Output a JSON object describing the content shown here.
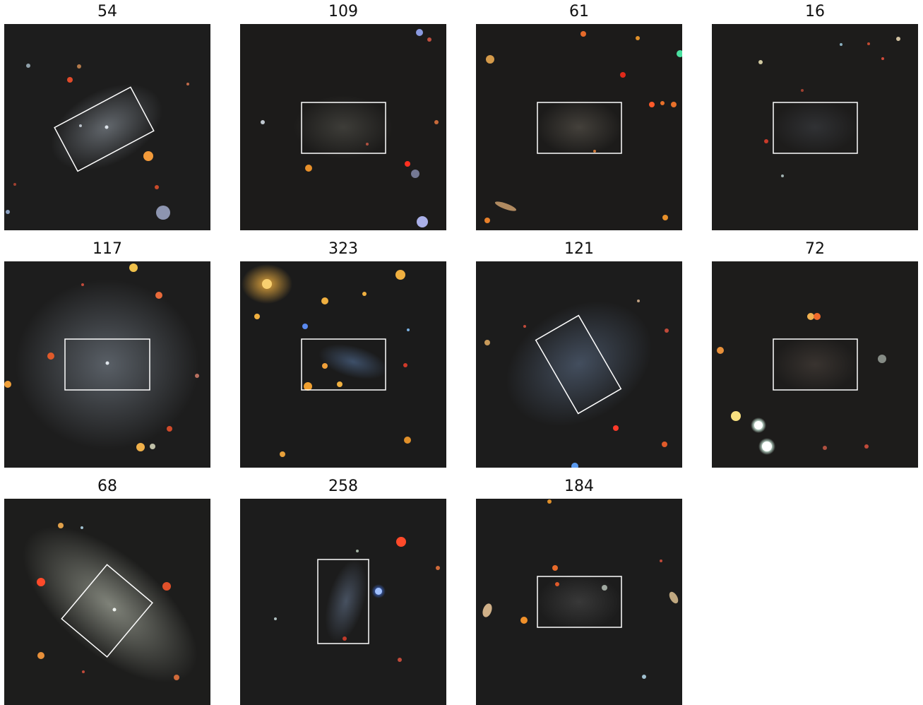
{
  "panels": [
    {
      "title": "54",
      "box": "rotated"
    },
    {
      "title": "109",
      "box": "horizontal"
    },
    {
      "title": "61",
      "box": "horizontal"
    },
    {
      "title": "16",
      "box": "horizontal"
    },
    {
      "title": "117",
      "box": "horizontal"
    },
    {
      "title": "323",
      "box": "horizontal"
    },
    {
      "title": "121",
      "box": "rotated"
    },
    {
      "title": "72",
      "box": "horizontal"
    },
    {
      "title": "68",
      "box": "rotated"
    },
    {
      "title": "258",
      "box": "vertical"
    },
    {
      "title": "184",
      "box": "horizontal"
    }
  ],
  "colors": {
    "sky_background": "#1c1c1c",
    "box_outline": "#ffffff",
    "galaxy_glow": "#8a93a0"
  }
}
